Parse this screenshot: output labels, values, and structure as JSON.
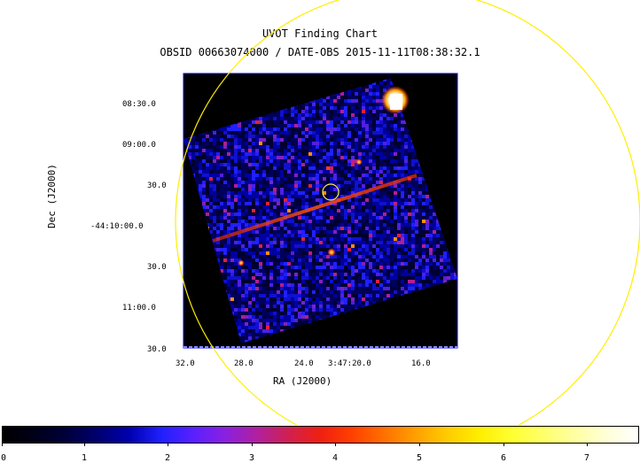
{
  "chart": {
    "title": "UVOT Finding Chart",
    "subtitle": "OBSID 00663074000 / DATE-OBS 2015-11-11T08:38:32.1",
    "xlabel": "RA (J2000)",
    "ylabel": "Dec (J2000)",
    "ra_ticks": [
      "32.0",
      "28.0",
      "24.0",
      "3:47:20.0",
      "16.0"
    ],
    "dec_ticks": [
      "08:30.0",
      "09:00.0",
      "30.0",
      "-44:10:00.0",
      "30.0",
      "11:00.0",
      "30.0"
    ],
    "colorbar_ticks": [
      "0",
      "1",
      "2",
      "3",
      "4",
      "5",
      "6",
      "7"
    ],
    "colors": {
      "circle": "#ffff00",
      "frame": "#0000ff",
      "background": "#000000"
    }
  }
}
